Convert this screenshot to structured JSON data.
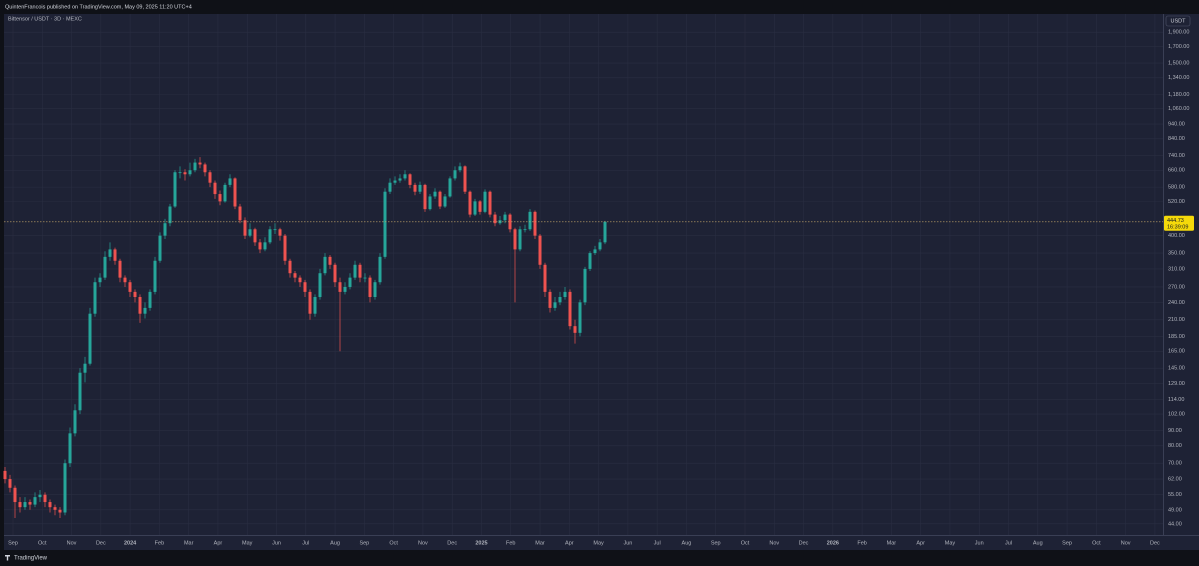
{
  "header": "QuintenFrancois published on TradingView.com, May 09, 2025 11:20 UTC+4",
  "footer": "TradingView",
  "chart_data": {
    "type": "candlestick",
    "title": "Bittensor / USDT · 3D · MEXC",
    "currency": "USDT",
    "log_scale": true,
    "grid": true,
    "up_color": "#26a69a",
    "down_color": "#ef5350",
    "price_line_color": "#c8a96a",
    "last_price": 444.73,
    "countdown": "16:39:09",
    "ylim": [
      40.4,
      2184
    ],
    "yticks": [
      {
        "value": 1900,
        "label": "1,900.00"
      },
      {
        "value": 1700,
        "label": "1,700.00"
      },
      {
        "value": 1500,
        "label": "1,500.00"
      },
      {
        "value": 1340,
        "label": "1,340.00"
      },
      {
        "value": 1180,
        "label": "1,180.00"
      },
      {
        "value": 1060,
        "label": "1,060.00"
      },
      {
        "value": 940,
        "label": "940.00"
      },
      {
        "value": 840,
        "label": "840.00"
      },
      {
        "value": 740,
        "label": "740.00"
      },
      {
        "value": 660,
        "label": "660.00"
      },
      {
        "value": 580,
        "label": "580.00"
      },
      {
        "value": 520,
        "label": "520.00"
      },
      {
        "value": 400,
        "label": "400.00"
      },
      {
        "value": 350,
        "label": "350.00"
      },
      {
        "value": 310,
        "label": "310.00"
      },
      {
        "value": 270,
        "label": "270.00"
      },
      {
        "value": 240,
        "label": "240.00"
      },
      {
        "value": 210,
        "label": "210.00"
      },
      {
        "value": 185,
        "label": "185.00"
      },
      {
        "value": 165,
        "label": "165.00"
      },
      {
        "value": 145,
        "label": "145.00"
      },
      {
        "value": 129,
        "label": "129.00"
      },
      {
        "value": 114,
        "label": "114.00"
      },
      {
        "value": 102,
        "label": "102.00"
      },
      {
        "value": 90,
        "label": "90.00"
      },
      {
        "value": 80,
        "label": "80.00"
      },
      {
        "value": 70,
        "label": "70.00"
      },
      {
        "value": 62,
        "label": "62.00"
      },
      {
        "value": 55,
        "label": "55.00"
      },
      {
        "value": 49,
        "label": "49.00"
      },
      {
        "value": 44,
        "label": "44.00"
      }
    ],
    "time_labels": [
      "Sep",
      "Oct",
      "Nov",
      "Dec",
      "2024",
      "Feb",
      "Mar",
      "Apr",
      "May",
      "Jun",
      "Jul",
      "Aug",
      "Sep",
      "Oct",
      "Nov",
      "Dec",
      "2025",
      "Feb",
      "Mar",
      "Apr",
      "May",
      "Jun",
      "Jul",
      "Aug",
      "Sep",
      "Oct",
      "Nov",
      "Dec",
      "2026",
      "Feb",
      "Mar",
      "Apr",
      "May",
      "Jun",
      "Jul",
      "Aug",
      "Sep",
      "Oct",
      "Nov",
      "Dec"
    ],
    "open": [
      66,
      62,
      58,
      52,
      50,
      52,
      51,
      54,
      55,
      52,
      50,
      49,
      48,
      70,
      88,
      105,
      140,
      150,
      220,
      280,
      290,
      340,
      360,
      330,
      290,
      280,
      260,
      250,
      220,
      230,
      260,
      330,
      400,
      440,
      500,
      650,
      650,
      640,
      660,
      700,
      690,
      650,
      600,
      550,
      520,
      590,
      620,
      500,
      450,
      400,
      420,
      380,
      360,
      380,
      420,
      420,
      400,
      330,
      300,
      290,
      280,
      260,
      220,
      250,
      300,
      340,
      320,
      280,
      260,
      270,
      290,
      320,
      290,
      290,
      250,
      280,
      340,
      560,
      600,
      610,
      620,
      640,
      590,
      560,
      590,
      490,
      540,
      560,
      500,
      540,
      620,
      660,
      680,
      560,
      470,
      520,
      480,
      560,
      470,
      440,
      450,
      470,
      420,
      360,
      420,
      420,
      480,
      400,
      320,
      260,
      230,
      240,
      250,
      260,
      200,
      190,
      240,
      310,
      350,
      360,
      380
    ],
    "high": [
      68,
      64,
      59,
      54,
      54,
      53,
      56,
      57,
      56,
      53,
      51,
      50,
      72,
      92,
      110,
      145,
      158,
      230,
      290,
      300,
      355,
      380,
      365,
      335,
      295,
      285,
      265,
      255,
      240,
      265,
      340,
      410,
      455,
      510,
      660,
      680,
      665,
      700,
      720,
      730,
      700,
      660,
      610,
      565,
      600,
      640,
      625,
      510,
      460,
      440,
      425,
      390,
      395,
      430,
      440,
      425,
      405,
      335,
      305,
      295,
      285,
      265,
      255,
      310,
      350,
      345,
      325,
      290,
      280,
      300,
      330,
      325,
      300,
      295,
      285,
      350,
      575,
      620,
      630,
      640,
      660,
      645,
      600,
      605,
      595,
      550,
      575,
      565,
      550,
      630,
      680,
      700,
      685,
      565,
      530,
      525,
      570,
      565,
      480,
      465,
      480,
      475,
      425,
      430,
      435,
      490,
      485,
      405,
      325,
      265,
      250,
      260,
      270,
      265,
      210,
      245,
      315,
      355,
      370,
      390,
      448
    ],
    "low": [
      60,
      56,
      46,
      48,
      49,
      49,
      50,
      52,
      50,
      48,
      47,
      46,
      47,
      68,
      86,
      102,
      130,
      148,
      215,
      270,
      285,
      330,
      320,
      280,
      270,
      250,
      240,
      205,
      212,
      225,
      255,
      325,
      390,
      430,
      495,
      620,
      610,
      630,
      650,
      670,
      630,
      580,
      530,
      505,
      515,
      580,
      490,
      440,
      390,
      395,
      370,
      350,
      355,
      375,
      405,
      385,
      320,
      290,
      280,
      270,
      250,
      210,
      215,
      245,
      295,
      310,
      270,
      165,
      255,
      265,
      285,
      280,
      280,
      240,
      245,
      275,
      335,
      550,
      590,
      600,
      610,
      575,
      545,
      550,
      480,
      485,
      530,
      490,
      495,
      535,
      610,
      650,
      550,
      460,
      465,
      470,
      475,
      460,
      430,
      435,
      440,
      410,
      240,
      355,
      410,
      415,
      390,
      310,
      250,
      222,
      225,
      235,
      245,
      195,
      175,
      185,
      235,
      305,
      345,
      355,
      375
    ],
    "close": [
      62,
      58,
      52,
      50,
      52,
      51,
      54,
      55,
      52,
      50,
      49,
      48,
      70,
      88,
      105,
      140,
      150,
      220,
      280,
      290,
      340,
      360,
      330,
      290,
      280,
      260,
      250,
      220,
      230,
      260,
      330,
      400,
      440,
      500,
      650,
      650,
      640,
      660,
      700,
      690,
      650,
      600,
      550,
      520,
      590,
      620,
      500,
      450,
      400,
      420,
      380,
      360,
      380,
      420,
      420,
      400,
      330,
      300,
      290,
      280,
      260,
      220,
      250,
      300,
      340,
      320,
      280,
      260,
      270,
      290,
      320,
      290,
      290,
      250,
      280,
      340,
      560,
      600,
      610,
      620,
      640,
      590,
      560,
      590,
      490,
      540,
      560,
      500,
      540,
      620,
      660,
      680,
      560,
      470,
      520,
      480,
      560,
      470,
      440,
      450,
      470,
      420,
      360,
      420,
      420,
      480,
      400,
      320,
      260,
      230,
      240,
      250,
      260,
      200,
      190,
      240,
      310,
      350,
      360,
      380,
      444.73
    ]
  }
}
